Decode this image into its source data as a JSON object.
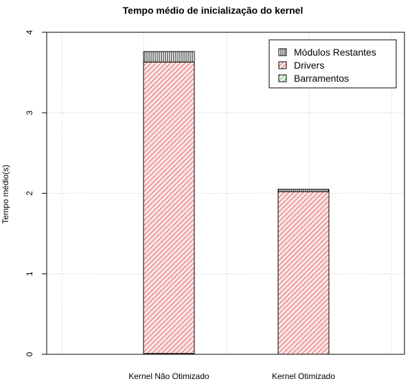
{
  "chart_data": {
    "type": "bar",
    "stacked": true,
    "title": "Tempo médio de inicialização do kernel",
    "xlabel": "",
    "ylabel": "Tempo médio(s)",
    "categories": [
      "Kernel Não Otimizado",
      "Kernel Otimizado"
    ],
    "ylim": [
      0,
      4
    ],
    "yticks": [
      "0",
      "1",
      "2",
      "3",
      "4"
    ],
    "grid": true,
    "legend_position": "top-right",
    "series": [
      {
        "name": "Barramentos",
        "values": [
          0.01,
          0.0
        ],
        "color": "#90ee90",
        "pattern": "diagonal"
      },
      {
        "name": "Drivers",
        "values": [
          3.62,
          2.02
        ],
        "color": "#f08080",
        "pattern": "diagonal"
      },
      {
        "name": "Módulos Restantes",
        "values": [
          0.13,
          0.03
        ],
        "color": "#000000",
        "pattern": "vertical"
      }
    ],
    "legend_order": [
      "Módulos Restantes",
      "Drivers",
      "Barramentos"
    ]
  }
}
